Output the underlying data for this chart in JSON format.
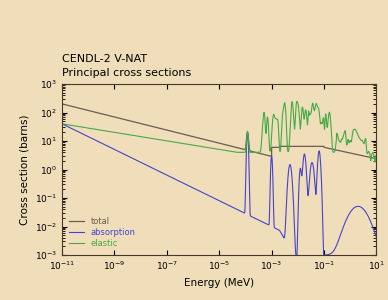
{
  "title_line1": "CENDL-2 V-NAT",
  "title_line2": "Principal cross sections",
  "xlabel": "Energy (MeV)",
  "ylabel": "Cross section (barns)",
  "background_color": "#f0deba",
  "plot_bg_color": "#f0deba",
  "xlim_log": [
    -11,
    1
  ],
  "ylim_log": [
    -3,
    3
  ],
  "legend": [
    "total",
    "absorption",
    "elastic"
  ],
  "colors": {
    "total": "#6b5b4e",
    "absorption": "#4444cc",
    "elastic": "#44aa44"
  }
}
